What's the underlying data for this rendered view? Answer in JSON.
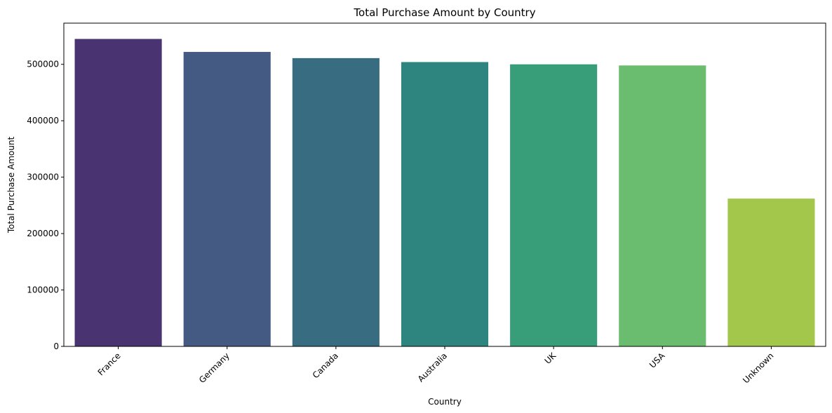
{
  "chart_data": {
    "type": "bar",
    "title": "Total Purchase Amount by Country",
    "xlabel": "Country",
    "ylabel": "Total Purchase Amount",
    "categories": [
      "France",
      "Germany",
      "Canada",
      "Australia",
      "UK",
      "USA",
      "Unknown"
    ],
    "values": [
      545000,
      522000,
      511000,
      504000,
      500000,
      498000,
      262000
    ],
    "colors": [
      "#4a3371",
      "#455a83",
      "#386c80",
      "#2e8580",
      "#389e79",
      "#6abc6e",
      "#a3c74a"
    ],
    "ylim": [
      0,
      573000
    ],
    "yticks": [
      0,
      100000,
      200000,
      300000,
      400000,
      500000
    ],
    "ytick_labels": [
      "0",
      "100000",
      "200000",
      "300000",
      "400000",
      "500000"
    ],
    "grid": false,
    "legend": false
  }
}
